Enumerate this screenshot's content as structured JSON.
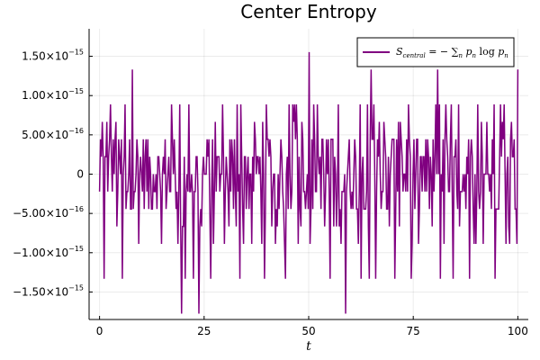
{
  "chart_data": {
    "type": "line",
    "title": "Center Entropy",
    "xlabel": "t",
    "ylabel": "",
    "xlim": [
      -2.5,
      102.5
    ],
    "ylim": [
      -1.85e-15,
      1.85e-15
    ],
    "grid": true,
    "legend_position": "top-right",
    "x_ticks": [
      0,
      25,
      50,
      75,
      100
    ],
    "x_tick_labels": [
      "0",
      "25",
      "50",
      "75",
      "100"
    ],
    "y_ticks": [
      1.5e-15,
      1e-15,
      5e-16,
      0,
      -5e-16,
      -1e-15,
      -1.5e-15
    ],
    "y_tick_labels": [
      {
        "mantissa": "1.50×10",
        "exp": "−15"
      },
      {
        "mantissa": "1.00×10",
        "exp": "−15"
      },
      {
        "mantissa": "5.00×10",
        "exp": "−16"
      },
      {
        "mantissa": "0",
        "exp": ""
      },
      {
        "mantissa": "−5.00×10",
        "exp": "−16"
      },
      {
        "mantissa": "−1.00×10",
        "exp": "−15"
      },
      {
        "mantissa": "−1.50×10",
        "exp": "−15"
      }
    ],
    "series": [
      {
        "name": "S_central = − ∑_n p_n log p_n",
        "color": "#800080",
        "t_start": 0,
        "t_end": 100,
        "levels": [
          -1.776e-15,
          -1.332e-15,
          -8.88e-16,
          -6.66e-16,
          -4.44e-16,
          -2.22e-16,
          0,
          2.22e-16,
          4.44e-16,
          6.66e-16,
          8.88e-16,
          1.332e-15,
          1.554e-15
        ],
        "common_levels": [
          -4.44e-16,
          -2.22e-16,
          0,
          2.22e-16,
          4.44e-16
        ],
        "spikes": [
          {
            "t": 19.5,
            "y": -1.776e-15
          },
          {
            "t": 23.8,
            "y": -1.776e-15
          },
          {
            "t": 58.9,
            "y": -1.776e-15
          },
          {
            "t": 50.0,
            "y": 1.554e-15
          },
          {
            "t": 7.9,
            "y": 1.332e-15
          },
          {
            "t": 99.9,
            "y": 1.332e-15
          },
          {
            "t": 1.0,
            "y": -1.332e-15
          },
          {
            "t": 5.5,
            "y": -1.332e-15
          },
          {
            "t": 20.5,
            "y": -1.332e-15
          },
          {
            "t": 22.5,
            "y": -1.332e-15
          },
          {
            "t": 26.5,
            "y": -1.332e-15
          },
          {
            "t": 33.5,
            "y": -1.332e-15
          },
          {
            "t": 39.5,
            "y": -1.332e-15
          },
          {
            "t": 44.5,
            "y": -1.332e-15
          },
          {
            "t": 55.2,
            "y": -1.332e-15
          },
          {
            "t": 62.5,
            "y": -1.332e-15
          },
          {
            "t": 64.5,
            "y": -1.332e-15
          },
          {
            "t": 66.0,
            "y": -1.332e-15
          },
          {
            "t": 70.5,
            "y": -1.332e-15
          },
          {
            "t": 74.5,
            "y": -1.332e-15
          },
          {
            "t": 81.5,
            "y": -1.332e-15
          },
          {
            "t": 84.5,
            "y": -1.332e-15
          },
          {
            "t": 88.5,
            "y": -1.332e-15
          },
          {
            "t": 94.5,
            "y": -1.332e-15
          },
          {
            "t": 65.0,
            "y": 1.332e-15
          },
          {
            "t": 80.8,
            "y": 1.332e-15
          }
        ],
        "dense_points": 460
      }
    ]
  }
}
